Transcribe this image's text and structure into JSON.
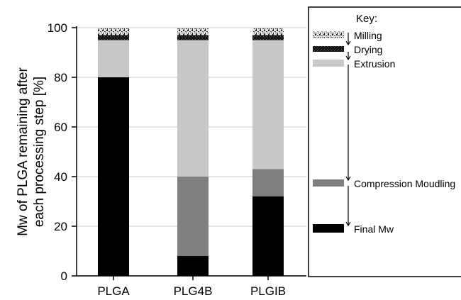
{
  "chart_data": {
    "type": "bar",
    "stacked": true,
    "ylabel": "Mw of PLGA remaining after each processing step [%]",
    "ylim": [
      0,
      100
    ],
    "yticks": [
      0,
      20,
      40,
      60,
      80,
      100
    ],
    "grid": true,
    "legend_position": "right",
    "categories": [
      "PLGA",
      "PLG4B",
      "PLGIB"
    ],
    "series": [
      {
        "name": "Final Mw",
        "values": [
          80,
          8,
          32
        ],
        "color": "#000000",
        "pattern": "solid"
      },
      {
        "name": "Compression Moudling",
        "values": [
          0,
          32,
          11
        ],
        "color": "#7f7f7f",
        "pattern": "solid"
      },
      {
        "name": "Extrusion",
        "values": [
          15,
          55,
          52
        ],
        "color": "#c8c8c8",
        "pattern": "solid"
      },
      {
        "name": "Drying",
        "values": [
          2,
          2,
          2
        ],
        "color": "#1e1e1e",
        "pattern": "dark-speckle"
      },
      {
        "name": "Milling",
        "values": [
          3,
          3,
          3
        ],
        "color": "#555555",
        "pattern": "light-speckle"
      }
    ],
    "legend_title": "Key:"
  }
}
